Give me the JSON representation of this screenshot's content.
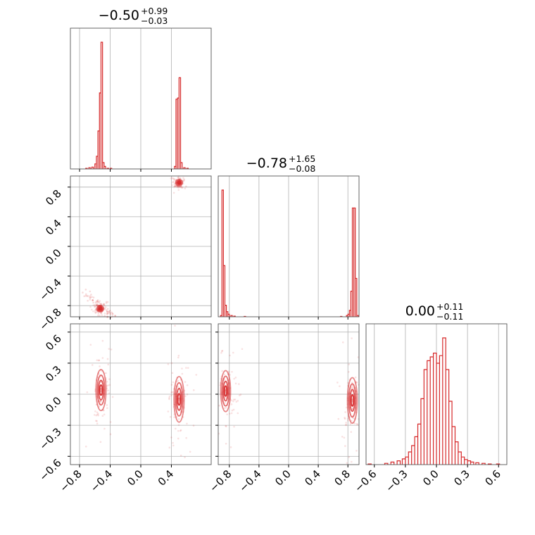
{
  "chart_data": {
    "type": "corner",
    "color": "#d62728",
    "grid": true,
    "parameters": [
      {
        "median": "−0.50",
        "plus": "+0.99",
        "minus": "−0.03",
        "range": [
          -0.92,
          0.92
        ]
      },
      {
        "median": "−0.78",
        "plus": "+1.65",
        "minus": "−0.08",
        "range": [
          -0.95,
          0.95
        ]
      },
      {
        "median": "0.00",
        "plus": "+0.11",
        "minus": "−0.11",
        "range": [
          -0.68,
          0.68
        ]
      }
    ],
    "ticks": {
      "p0": {
        "values": [
          -0.8,
          -0.4,
          0.0,
          0.4
        ],
        "labels": [
          "−0.8",
          "−0.4",
          "0.0",
          "0.4"
        ]
      },
      "p1_y": {
        "values": [
          0.8,
          0.4,
          0.0,
          -0.4,
          -0.8
        ],
        "labels": [
          "0.8",
          "0.4",
          "0.0",
          "−0.4",
          "−0.8"
        ]
      },
      "p1_x": {
        "values": [
          -0.8,
          -0.4,
          0.0,
          0.4,
          0.8
        ],
        "labels": [
          "−0.8",
          "−0.4",
          "0.0",
          "0.4",
          "0.8"
        ]
      },
      "p2_y": {
        "values": [
          0.6,
          0.3,
          0.0,
          -0.3,
          -0.6
        ],
        "labels": [
          "0.6",
          "0.3",
          "0.0",
          "−0.3",
          "−0.6"
        ]
      },
      "p2_x": {
        "values": [
          -0.6,
          -0.3,
          0.0,
          0.3,
          0.6
        ],
        "labels": [
          "−0.6",
          "−0.3",
          "0.0",
          "0.3",
          "0.6"
        ]
      }
    },
    "histograms": [
      {
        "parameter": 0,
        "bins": [
          [
            -0.72,
            0.005
          ],
          [
            -0.68,
            0.01
          ],
          [
            -0.64,
            0.015
          ],
          [
            -0.6,
            0.04
          ],
          [
            -0.58,
            0.1
          ],
          [
            -0.56,
            0.3
          ],
          [
            -0.54,
            0.6
          ],
          [
            -0.52,
            1.0
          ],
          [
            -0.5,
            0.05
          ],
          [
            -0.48,
            0.02
          ],
          [
            -0.44,
            0.005
          ],
          [
            -0.4,
            0.005
          ],
          [
            0.44,
            0.02
          ],
          [
            0.46,
            0.55
          ],
          [
            0.48,
            0.56
          ],
          [
            0.5,
            0.72
          ],
          [
            0.52,
            0.05
          ],
          [
            0.56,
            0.01
          ],
          [
            0.6,
            0.005
          ]
        ],
        "bin_width": 0.02
      },
      {
        "parameter": 1,
        "bins": [
          [
            -0.92,
            0.01
          ],
          [
            -0.9,
            0.99
          ],
          [
            -0.88,
            0.4
          ],
          [
            -0.86,
            0.09
          ],
          [
            -0.84,
            0.04
          ],
          [
            -0.82,
            0.02
          ],
          [
            -0.78,
            0.01
          ],
          [
            -0.74,
            0.005
          ],
          [
            -0.6,
            0.003
          ],
          [
            0.7,
            0.003
          ],
          [
            0.78,
            0.01
          ],
          [
            0.8,
            0.02
          ],
          [
            0.82,
            0.05
          ],
          [
            0.84,
            0.2
          ],
          [
            0.86,
            0.85
          ],
          [
            0.88,
            0.85
          ],
          [
            0.9,
            0.3
          ],
          [
            0.92,
            0.01
          ]
        ],
        "bin_width": 0.02
      },
      {
        "parameter": 2,
        "bins": [
          [
            -0.66,
            0.005
          ],
          [
            -0.5,
            0.01
          ],
          [
            -0.44,
            0.02
          ],
          [
            -0.38,
            0.03
          ],
          [
            -0.33,
            0.045
          ],
          [
            -0.3,
            0.06
          ],
          [
            -0.27,
            0.1
          ],
          [
            -0.24,
            0.15
          ],
          [
            -0.21,
            0.22
          ],
          [
            -0.18,
            0.32
          ],
          [
            -0.15,
            0.52
          ],
          [
            -0.12,
            0.75
          ],
          [
            -0.09,
            0.82
          ],
          [
            -0.06,
            0.85
          ],
          [
            -0.03,
            0.88
          ],
          [
            0.0,
            0.8
          ],
          [
            0.03,
            0.86
          ],
          [
            0.06,
            1.0
          ],
          [
            0.09,
            0.75
          ],
          [
            0.12,
            0.5
          ],
          [
            0.15,
            0.3
          ],
          [
            0.18,
            0.18
          ],
          [
            0.21,
            0.1
          ],
          [
            0.24,
            0.06
          ],
          [
            0.27,
            0.04
          ],
          [
            0.3,
            0.03
          ],
          [
            0.33,
            0.02
          ],
          [
            0.38,
            0.015
          ],
          [
            0.44,
            0.01
          ],
          [
            0.5,
            0.005
          ],
          [
            0.58,
            0.005
          ]
        ],
        "bin_width": 0.03
      }
    ],
    "joint_modes": [
      {
        "px": 0,
        "py": 1,
        "modes": [
          {
            "cx": -0.53,
            "cy": -0.84,
            "sx": 0.02,
            "sy": 0.02,
            "rho": 0
          },
          {
            "cx": 0.5,
            "cy": 0.86,
            "sx": 0.02,
            "sy": 0.02,
            "rho": 0
          }
        ],
        "tail": {
          "from": [
            -0.75,
            -0.62
          ],
          "to": [
            -0.35,
            -0.95
          ]
        }
      },
      {
        "px": 0,
        "py": 2,
        "modes": [
          {
            "cx": -0.52,
            "cy": 0.04,
            "sx": 0.03,
            "sy": 0.09,
            "rho": 0
          },
          {
            "cx": 0.5,
            "cy": -0.05,
            "sx": 0.03,
            "sy": 0.1,
            "rho": 0
          }
        ]
      },
      {
        "px": 1,
        "py": 2,
        "modes": [
          {
            "cx": -0.85,
            "cy": 0.03,
            "sx": 0.03,
            "sy": 0.09,
            "rho": 0
          },
          {
            "cx": 0.86,
            "cy": -0.06,
            "sx": 0.03,
            "sy": 0.1,
            "rho": 0
          }
        ]
      }
    ]
  }
}
